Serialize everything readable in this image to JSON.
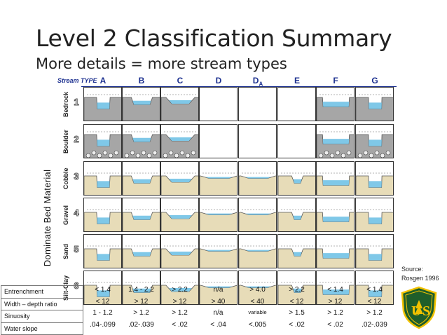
{
  "slide": {
    "title": "Level 2 Classification Summary",
    "subtitle": "More details = more stream types",
    "vertical_axis": "Dominate Bed Material",
    "stream_type_label": "Stream TYPE",
    "source_line1": "Source:",
    "source_line2": "Rosgen 1996"
  },
  "columns": [
    {
      "letter": "A"
    },
    {
      "letter": "B"
    },
    {
      "letter": "C"
    },
    {
      "letter": "D"
    },
    {
      "letter": "D",
      "sub": "A"
    },
    {
      "letter": "E"
    },
    {
      "letter": "F"
    },
    {
      "letter": "G"
    }
  ],
  "rows": [
    {
      "material": "Bedrock",
      "number": "1"
    },
    {
      "material": "Boulder",
      "number": "2"
    },
    {
      "material": "Cobble",
      "number": "3"
    },
    {
      "material": "Gravel",
      "number": "4"
    },
    {
      "material": "Sand",
      "number": "5"
    },
    {
      "material": "Silt-Clay",
      "number": "6"
    }
  ],
  "metrics": [
    {
      "label": "Entrenchment",
      "values": [
        "< 1.4",
        "1.4 - 2.2",
        "> 2.2",
        "n/a",
        "> 4.0",
        "> 2.2",
        "< 1.4",
        "< 1.4"
      ]
    },
    {
      "label": "Width – depth ratio",
      "values": [
        "< 12",
        "> 12",
        "> 12",
        "> 40",
        "< 40",
        "< 12",
        "> 12",
        "< 12"
      ]
    },
    {
      "label": "Sinuosity",
      "values": [
        "1 - 1.2",
        "> 1.2",
        "> 1.2",
        "n/a",
        "variable",
        "> 1.5",
        "> 1.2",
        "> 1.2"
      ]
    },
    {
      "label": "Water slope",
      "values": [
        ".04-.099",
        ".02-.039",
        "< .02",
        "< .04",
        "<.005",
        "< .02",
        "< .02",
        ".02-.039"
      ]
    }
  ],
  "colors": {
    "header_blue": "#1b2f8f",
    "water": "#7fc8e8",
    "bedrock": "#a6a6a6",
    "sediment": "#e7dcb8",
    "badge_green": "#1f5e2a",
    "badge_yellow": "#f2c200"
  },
  "badge": {
    "icon": "forest-service-shield-icon",
    "text": "FOREST SERVICE"
  }
}
